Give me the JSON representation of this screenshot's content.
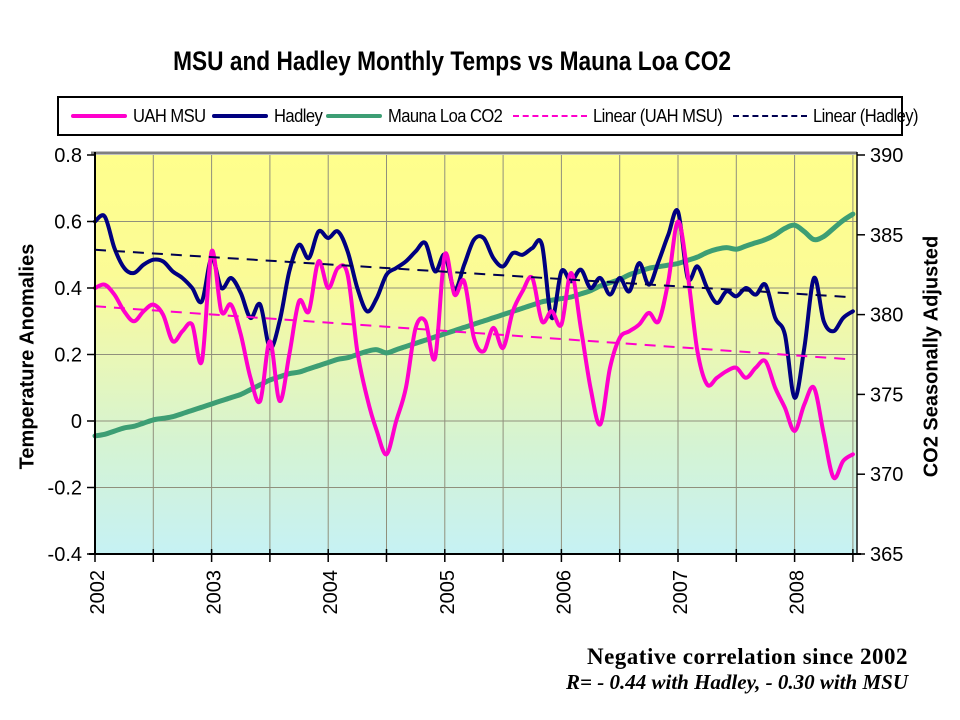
{
  "title": "MSU and Hadley Monthly Temps vs Mauna Loa CO2",
  "legend": {
    "items": [
      {
        "label": "UAH MSU",
        "style": "solid",
        "color": "#ff00cc"
      },
      {
        "label": "Hadley",
        "style": "solid",
        "color": "#000080"
      },
      {
        "label": "Mauna Loa CO2",
        "style": "solid",
        "color": "#3d9e74"
      },
      {
        "label": "Linear (UAH MSU)",
        "style": "dashed",
        "color": "#ff00cc"
      },
      {
        "label": "Linear (Hadley)",
        "style": "dashed",
        "color": "#000050"
      }
    ]
  },
  "axes": {
    "left": {
      "title": "Temperature Anomalies",
      "ticks": [
        "0.8",
        "0.6",
        "0.4",
        "0.2",
        "0",
        "-0.2",
        "-0.4"
      ]
    },
    "right": {
      "title": "CO2 Seasonally Adjusted",
      "ticks": [
        "390",
        "385",
        "380",
        "375",
        "370",
        "365"
      ]
    },
    "x": {
      "ticks": [
        "2002",
        "2003",
        "2004",
        "2005",
        "2006",
        "2007",
        "2008"
      ]
    }
  },
  "annotation": {
    "line1": "Negative correlation since 2002",
    "line2": "R= - 0.44 with Hadley, - 0.30 with MSU"
  },
  "chart_data": {
    "type": "line",
    "x_start_year": 2002,
    "x_step": "monthly",
    "x_range": [
      2002,
      2008.54
    ],
    "ylim_left": [
      -0.4,
      0.8
    ],
    "ylim_right": [
      365,
      390
    ],
    "grid": {
      "x_interval_years": 0.5,
      "y_left_interval": 0.2,
      "color": "#90907c"
    },
    "background_gradient": [
      "#ffff8c",
      "#fbfb96",
      "#e8f7b8",
      "#d5f3d2",
      "#c6f2f4"
    ],
    "series": [
      {
        "name": "UAH MSU",
        "axis": "left",
        "color": "#ff00cc",
        "width": 4,
        "values": [
          0.4,
          0.41,
          0.38,
          0.33,
          0.3,
          0.33,
          0.35,
          0.32,
          0.24,
          0.27,
          0.29,
          0.18,
          0.51,
          0.33,
          0.35,
          0.26,
          0.13,
          0.06,
          0.24,
          0.06,
          0.2,
          0.36,
          0.33,
          0.48,
          0.4,
          0.46,
          0.44,
          0.21,
          0.07,
          -0.03,
          -0.1,
          0.0,
          0.1,
          0.28,
          0.3,
          0.19,
          0.5,
          0.38,
          0.42,
          0.25,
          0.21,
          0.28,
          0.22,
          0.33,
          0.39,
          0.43,
          0.3,
          0.33,
          0.29,
          0.445,
          0.28,
          0.1,
          -0.01,
          0.16,
          0.25,
          0.27,
          0.29,
          0.325,
          0.3,
          0.42,
          0.6,
          0.44,
          0.21,
          0.11,
          0.13,
          0.15,
          0.16,
          0.13,
          0.16,
          0.18,
          0.1,
          0.04,
          -0.03,
          0.05,
          0.1,
          -0.04,
          -0.17,
          -0.12,
          -0.1
        ]
      },
      {
        "name": "Hadley",
        "axis": "left",
        "color": "#000080",
        "width": 4,
        "values": [
          0.6,
          0.615,
          0.52,
          0.46,
          0.445,
          0.47,
          0.485,
          0.48,
          0.45,
          0.43,
          0.4,
          0.36,
          0.49,
          0.4,
          0.43,
          0.385,
          0.31,
          0.35,
          0.22,
          0.3,
          0.45,
          0.53,
          0.49,
          0.57,
          0.55,
          0.57,
          0.51,
          0.4,
          0.33,
          0.37,
          0.44,
          0.46,
          0.48,
          0.51,
          0.535,
          0.45,
          0.5,
          0.395,
          0.47,
          0.545,
          0.55,
          0.49,
          0.465,
          0.505,
          0.5,
          0.52,
          0.53,
          0.31,
          0.45,
          0.42,
          0.455,
          0.4,
          0.43,
          0.38,
          0.43,
          0.39,
          0.475,
          0.41,
          0.48,
          0.56,
          0.63,
          0.43,
          0.465,
          0.4,
          0.355,
          0.39,
          0.375,
          0.4,
          0.38,
          0.41,
          0.31,
          0.26,
          0.07,
          0.22,
          0.43,
          0.3,
          0.27,
          0.31,
          0.33
        ]
      },
      {
        "name": "Mauna Loa CO2",
        "axis": "right",
        "color": "#3d9e74",
        "width": 5,
        "values": [
          372.4,
          372.5,
          372.7,
          372.9,
          373.0,
          373.2,
          373.4,
          373.5,
          373.6,
          373.8,
          374.0,
          374.2,
          374.4,
          374.6,
          374.8,
          375.0,
          375.3,
          375.6,
          375.9,
          376.1,
          376.3,
          376.4,
          376.6,
          376.8,
          377.0,
          377.2,
          377.3,
          377.5,
          377.7,
          377.8,
          377.6,
          377.8,
          378.0,
          378.2,
          378.4,
          378.6,
          378.8,
          379.0,
          379.2,
          379.4,
          379.6,
          379.8,
          380.0,
          380.2,
          380.4,
          380.6,
          380.8,
          380.9,
          381.0,
          381.1,
          381.3,
          381.5,
          381.8,
          382.0,
          382.2,
          382.5,
          382.7,
          382.9,
          383.0,
          383.1,
          383.2,
          383.4,
          383.6,
          383.9,
          384.1,
          384.2,
          384.1,
          384.3,
          384.5,
          384.7,
          385.0,
          385.4,
          385.6,
          385.2,
          384.7,
          384.9,
          385.4,
          385.9,
          386.3
        ]
      }
    ],
    "trendlines": [
      {
        "name": "Linear (UAH MSU)",
        "axis": "left",
        "color": "#ff00cc",
        "x": [
          2002.0,
          2008.5
        ],
        "y": [
          0.345,
          0.185
        ]
      },
      {
        "name": "Linear (Hadley)",
        "axis": "left",
        "color": "#000050",
        "x": [
          2002.0,
          2008.5
        ],
        "y": [
          0.515,
          0.372
        ]
      }
    ]
  }
}
